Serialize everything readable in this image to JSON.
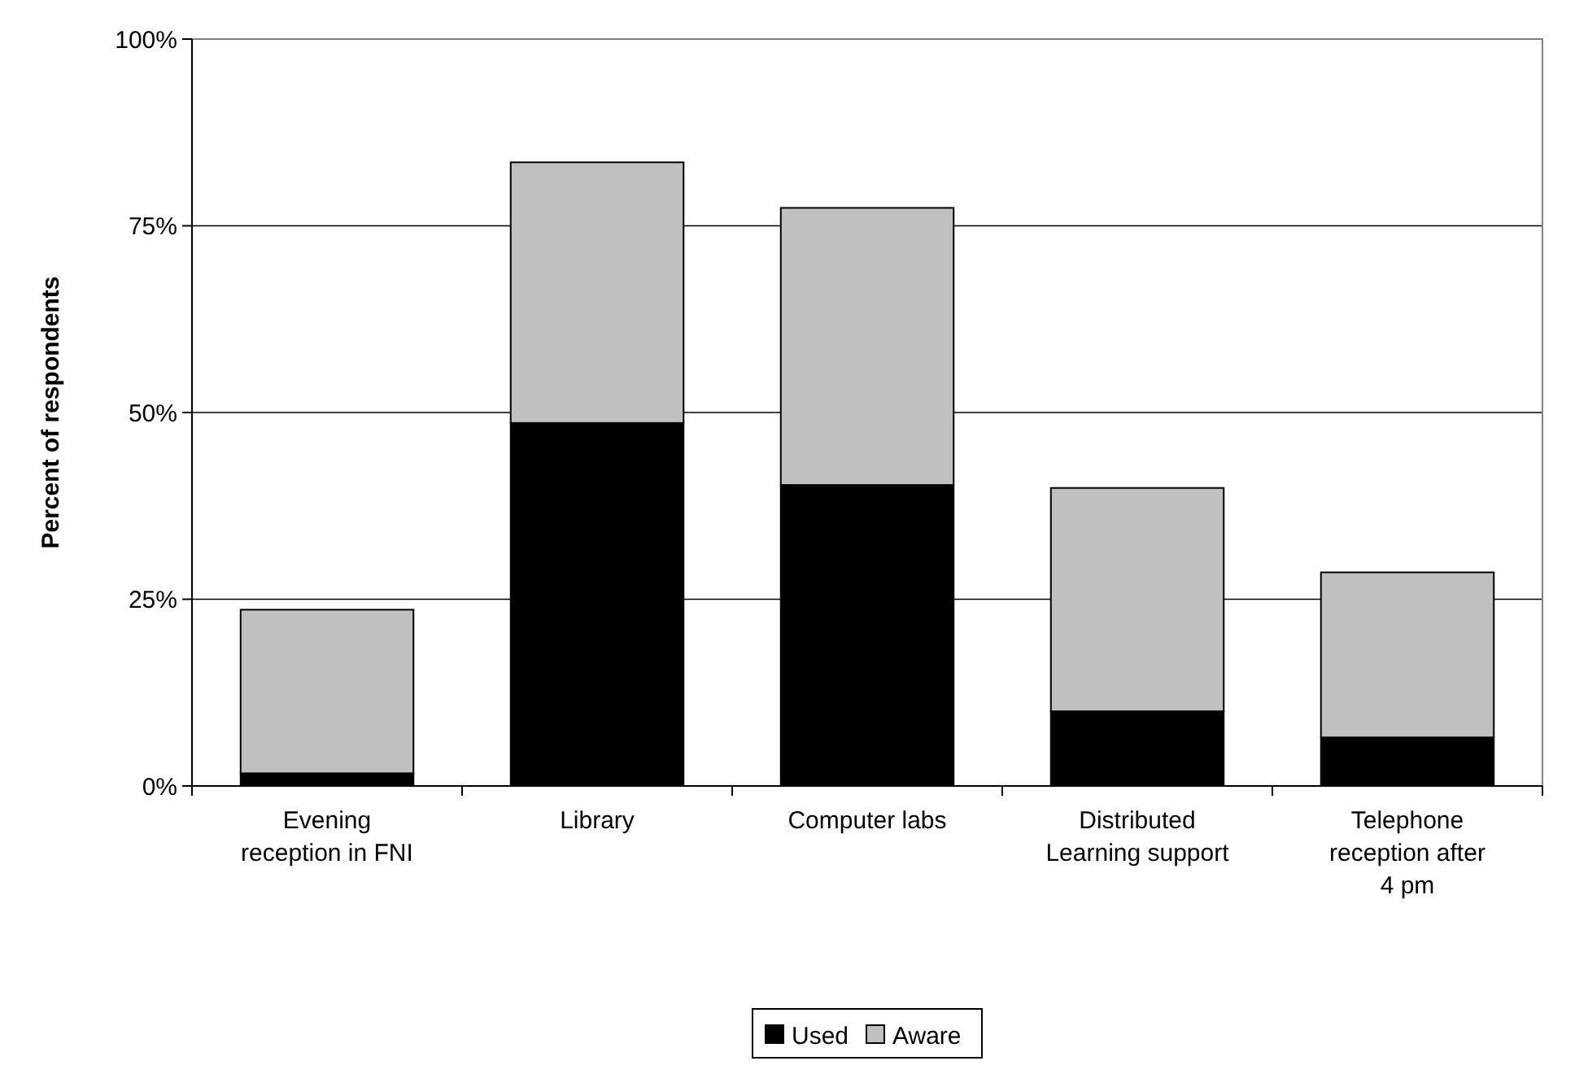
{
  "chart_data": {
    "type": "bar",
    "stacked": true,
    "ylabel": "Percent of respondents",
    "categories": [
      "Evening reception in FNI",
      "Library",
      "Computer labs",
      "Distributed Learning support",
      "Telephone reception after 4 pm"
    ],
    "series": [
      {
        "name": "Used",
        "color": "#000000",
        "values": [
          1.7,
          48.6,
          40.3,
          10.0,
          6.5
        ]
      },
      {
        "name": "Aware",
        "color": "#c0c0c0",
        "values": [
          21.9,
          34.9,
          37.1,
          29.9,
          22.1
        ]
      }
    ],
    "ylim": [
      0,
      100
    ],
    "yticks": [
      {
        "value": 0,
        "label": "0%"
      },
      {
        "value": 25,
        "label": "25%"
      },
      {
        "value": 50,
        "label": "50%"
      },
      {
        "value": 75,
        "label": "75%"
      },
      {
        "value": 100,
        "label": "100%"
      }
    ],
    "grid": "y",
    "legend": "bottom"
  }
}
